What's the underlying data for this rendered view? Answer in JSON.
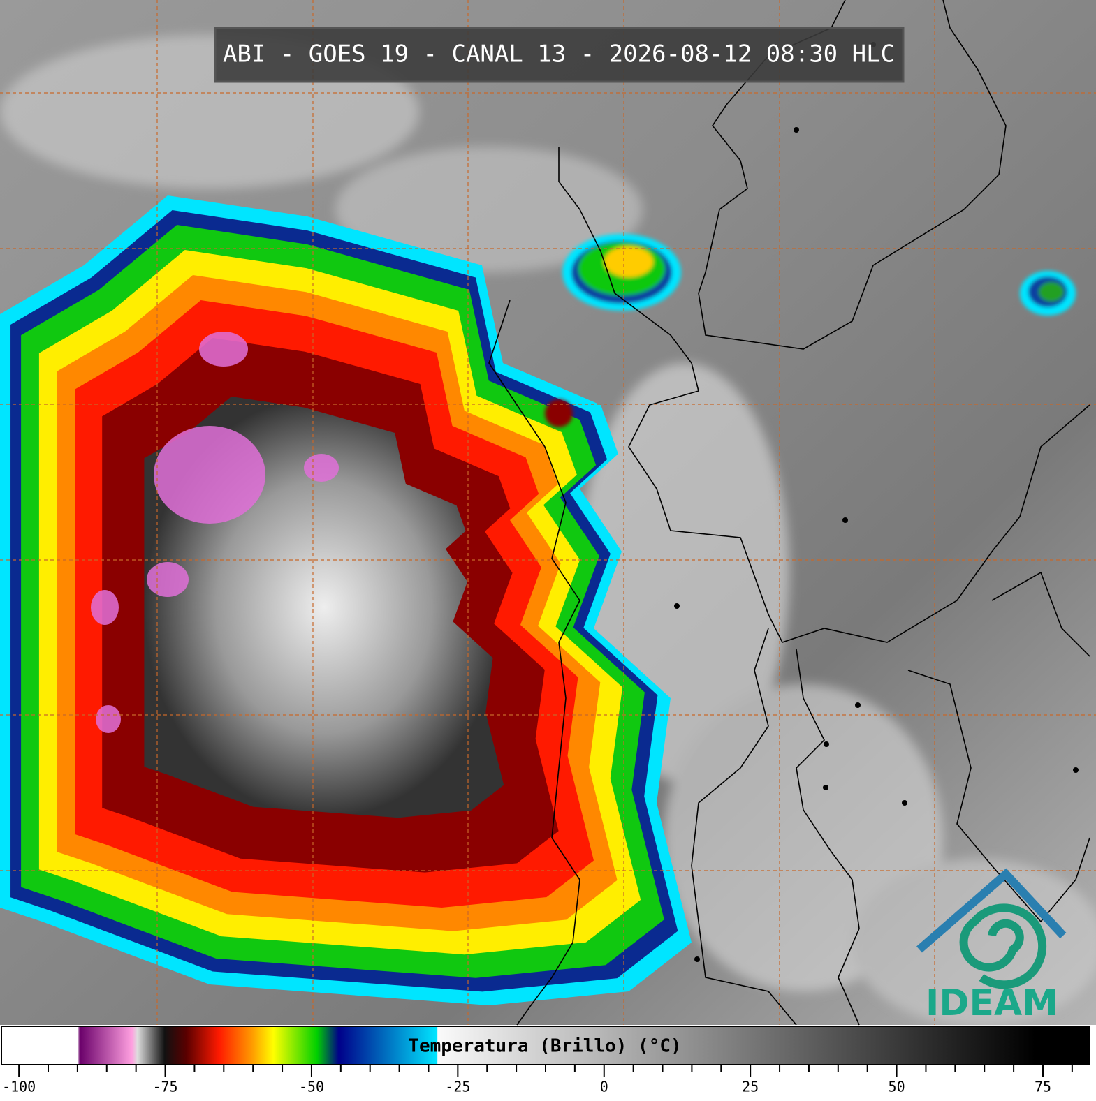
{
  "title": "ABI - GOES 19 - CANAL 13 - 2026-08-12 08:30 HLC",
  "colorbar": {
    "label": "Temperatura (Brillo) (°C)",
    "xlim": [
      -103,
      83
    ],
    "ticks": [
      -100,
      -75,
      -50,
      -25,
      0,
      25,
      50,
      75
    ],
    "minor_ticks": [
      -95,
      -90,
      -85,
      -80,
      -70,
      -65,
      -60,
      -55,
      -45,
      -40,
      -35,
      -30,
      -20,
      -15,
      -10,
      -5,
      5,
      10,
      15,
      20,
      30,
      35,
      40,
      45,
      55,
      60,
      65,
      70,
      80
    ]
  },
  "logo": "IDEAM"
}
